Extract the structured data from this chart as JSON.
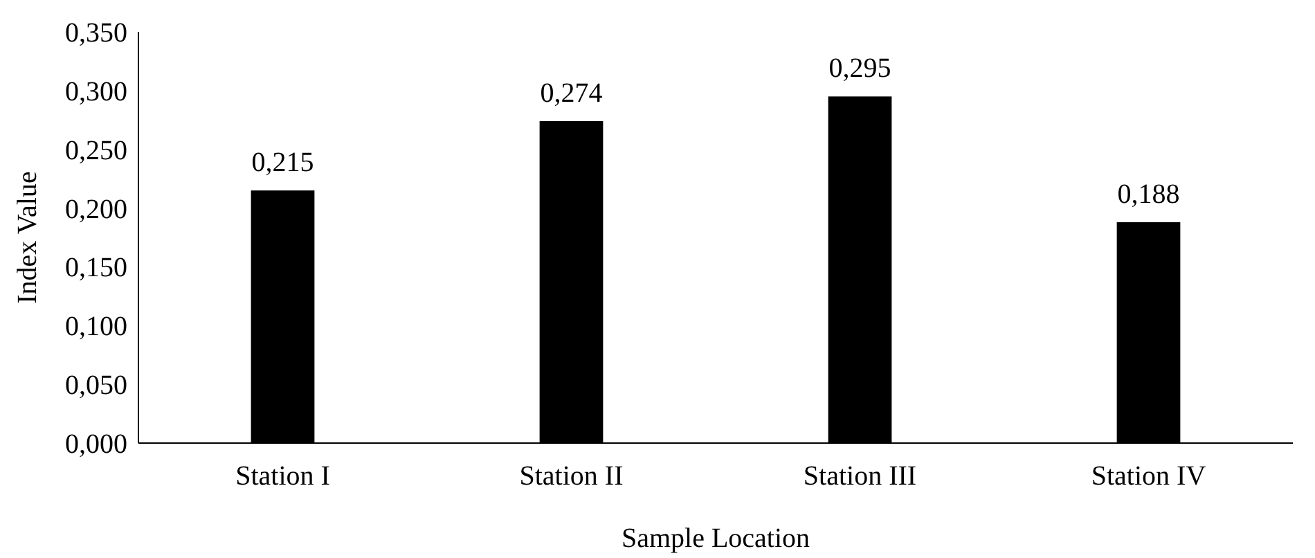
{
  "chart_data": {
    "type": "bar",
    "xlabel": "Sample Location",
    "ylabel": "Index Value",
    "categories": [
      "Station I",
      "Station II",
      "Station III",
      "Station IV"
    ],
    "values": [
      0.215,
      0.274,
      0.295,
      0.188
    ],
    "value_labels": [
      "0,215",
      "0,274",
      "0,295",
      "0,188"
    ],
    "color": "#000000",
    "ylim": [
      0,
      0.35
    ],
    "yticks": [
      {
        "value": 0,
        "label": "0,000"
      },
      {
        "value": 0.05,
        "label": "0,050"
      },
      {
        "value": 0.1,
        "label": "0,100"
      },
      {
        "value": 0.15,
        "label": "0,150"
      },
      {
        "value": 0.2,
        "label": "0,200"
      },
      {
        "value": 0.25,
        "label": "0,250"
      },
      {
        "value": 0.3,
        "label": "0,300"
      },
      {
        "value": 0.35,
        "label": "0,350"
      }
    ],
    "grid": false
  }
}
